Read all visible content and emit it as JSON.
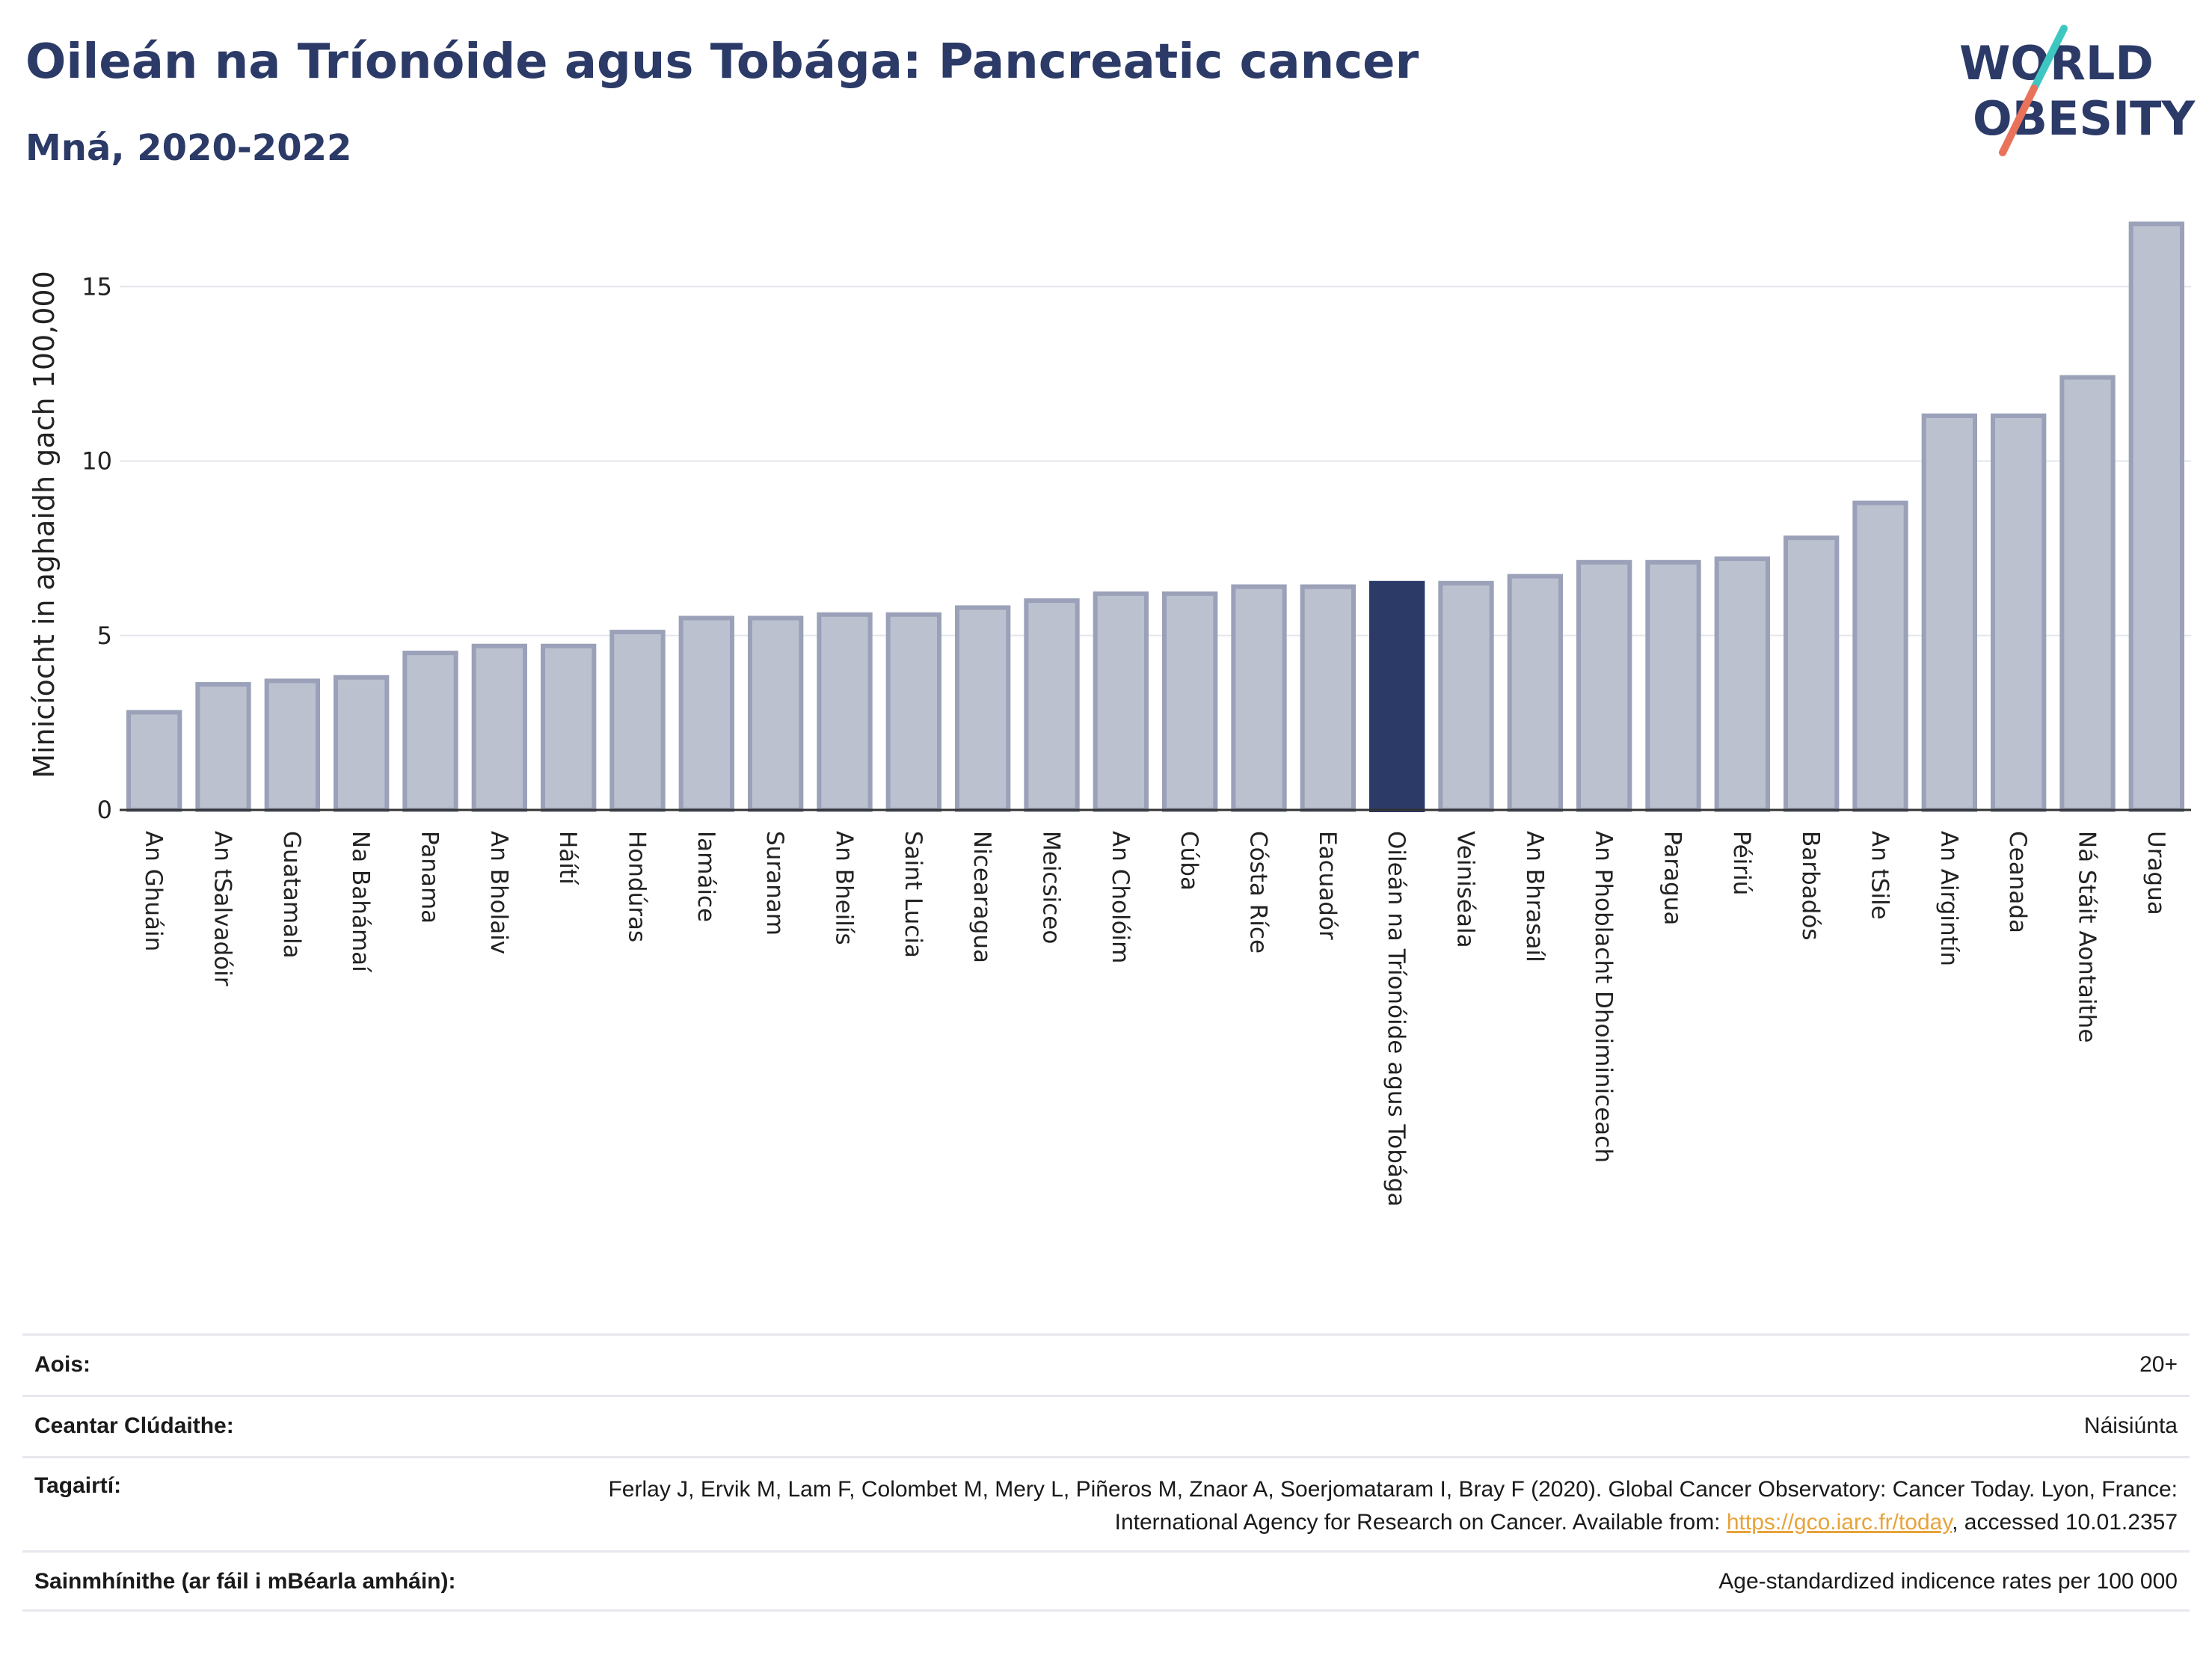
{
  "title": "Oileán na Tríonóide agus Tobága: Pancreatic cancer",
  "subtitle": "Mná, 2020-2022",
  "logo": {
    "line1": "WORLD",
    "line2": "OBESITY",
    "colors": {
      "text": "#2b3a67",
      "slash_teal": "#3ec7c0",
      "slash_coral": "#e8735a"
    }
  },
  "chart_data": {
    "type": "bar",
    "ylabel": "Minicíocht in aghaidh gach 100,000",
    "ylim": [
      0,
      17
    ],
    "yticks": [
      0,
      5,
      10,
      15
    ],
    "grid": true,
    "highlight_category": "Oileán na Tríonóide agus Tobága",
    "colors": {
      "bar": "#bcc1cf",
      "bar_edge": "#9aa1b8",
      "highlight": "#2b3a67"
    },
    "categories": [
      "An Ghuáin",
      "An tSalvadóir",
      "Guatamala",
      "Na Bahámaí",
      "Panama",
      "An Bholaiv",
      "Háítí",
      "Hondúras",
      "Iamáice",
      "Suranam",
      "An Bheilís",
      "Saint Lucia",
      "Nicearagua",
      "Meicsiceo",
      "An Cholóim",
      "Cúba",
      "Cósta Ríce",
      "Eacuadór",
      "Oileán na Tríonóide agus Tobága",
      "Veiniséala",
      "An Bhrasaíl",
      "An Phoblacht Dhoiminiceach",
      "Paragua",
      "Péiriú",
      "Barbadós",
      "An tSile",
      "An Airgintín",
      "Ceanada",
      "Ná Stáit Aontaithe",
      "Uragua"
    ],
    "values": [
      2.8,
      3.6,
      3.7,
      3.8,
      4.5,
      4.7,
      4.7,
      5.1,
      5.5,
      5.5,
      5.6,
      5.6,
      5.8,
      6.0,
      6.2,
      6.2,
      6.4,
      6.4,
      6.5,
      6.5,
      6.7,
      7.1,
      7.1,
      7.2,
      7.8,
      8.8,
      11.3,
      11.3,
      12.4,
      16.8
    ]
  },
  "info": {
    "age_label": "Aois:",
    "age_value": "20+",
    "coverage_label": "Ceantar Clúdaithe:",
    "coverage_value": "Náisiúnta",
    "refs_label": "Tagairtí:",
    "refs_text_1": "Ferlay J, Ervik M, Lam F, Colombet M, Mery L, Piñeros M, Znaor A, Soerjomataram I, Bray F (2020). Global Cancer Observatory: Cancer Today. Lyon, France: International Agency for Research on Cancer. Available from: ",
    "refs_link": "https://gco.iarc.fr/today",
    "refs_text_2": ", accessed 10.01.2357",
    "definitions_label": "Sainmhínithe (ar fáil i mBéarla amháin):",
    "definitions_value": "Age-standardized indicence rates per 100 000"
  }
}
